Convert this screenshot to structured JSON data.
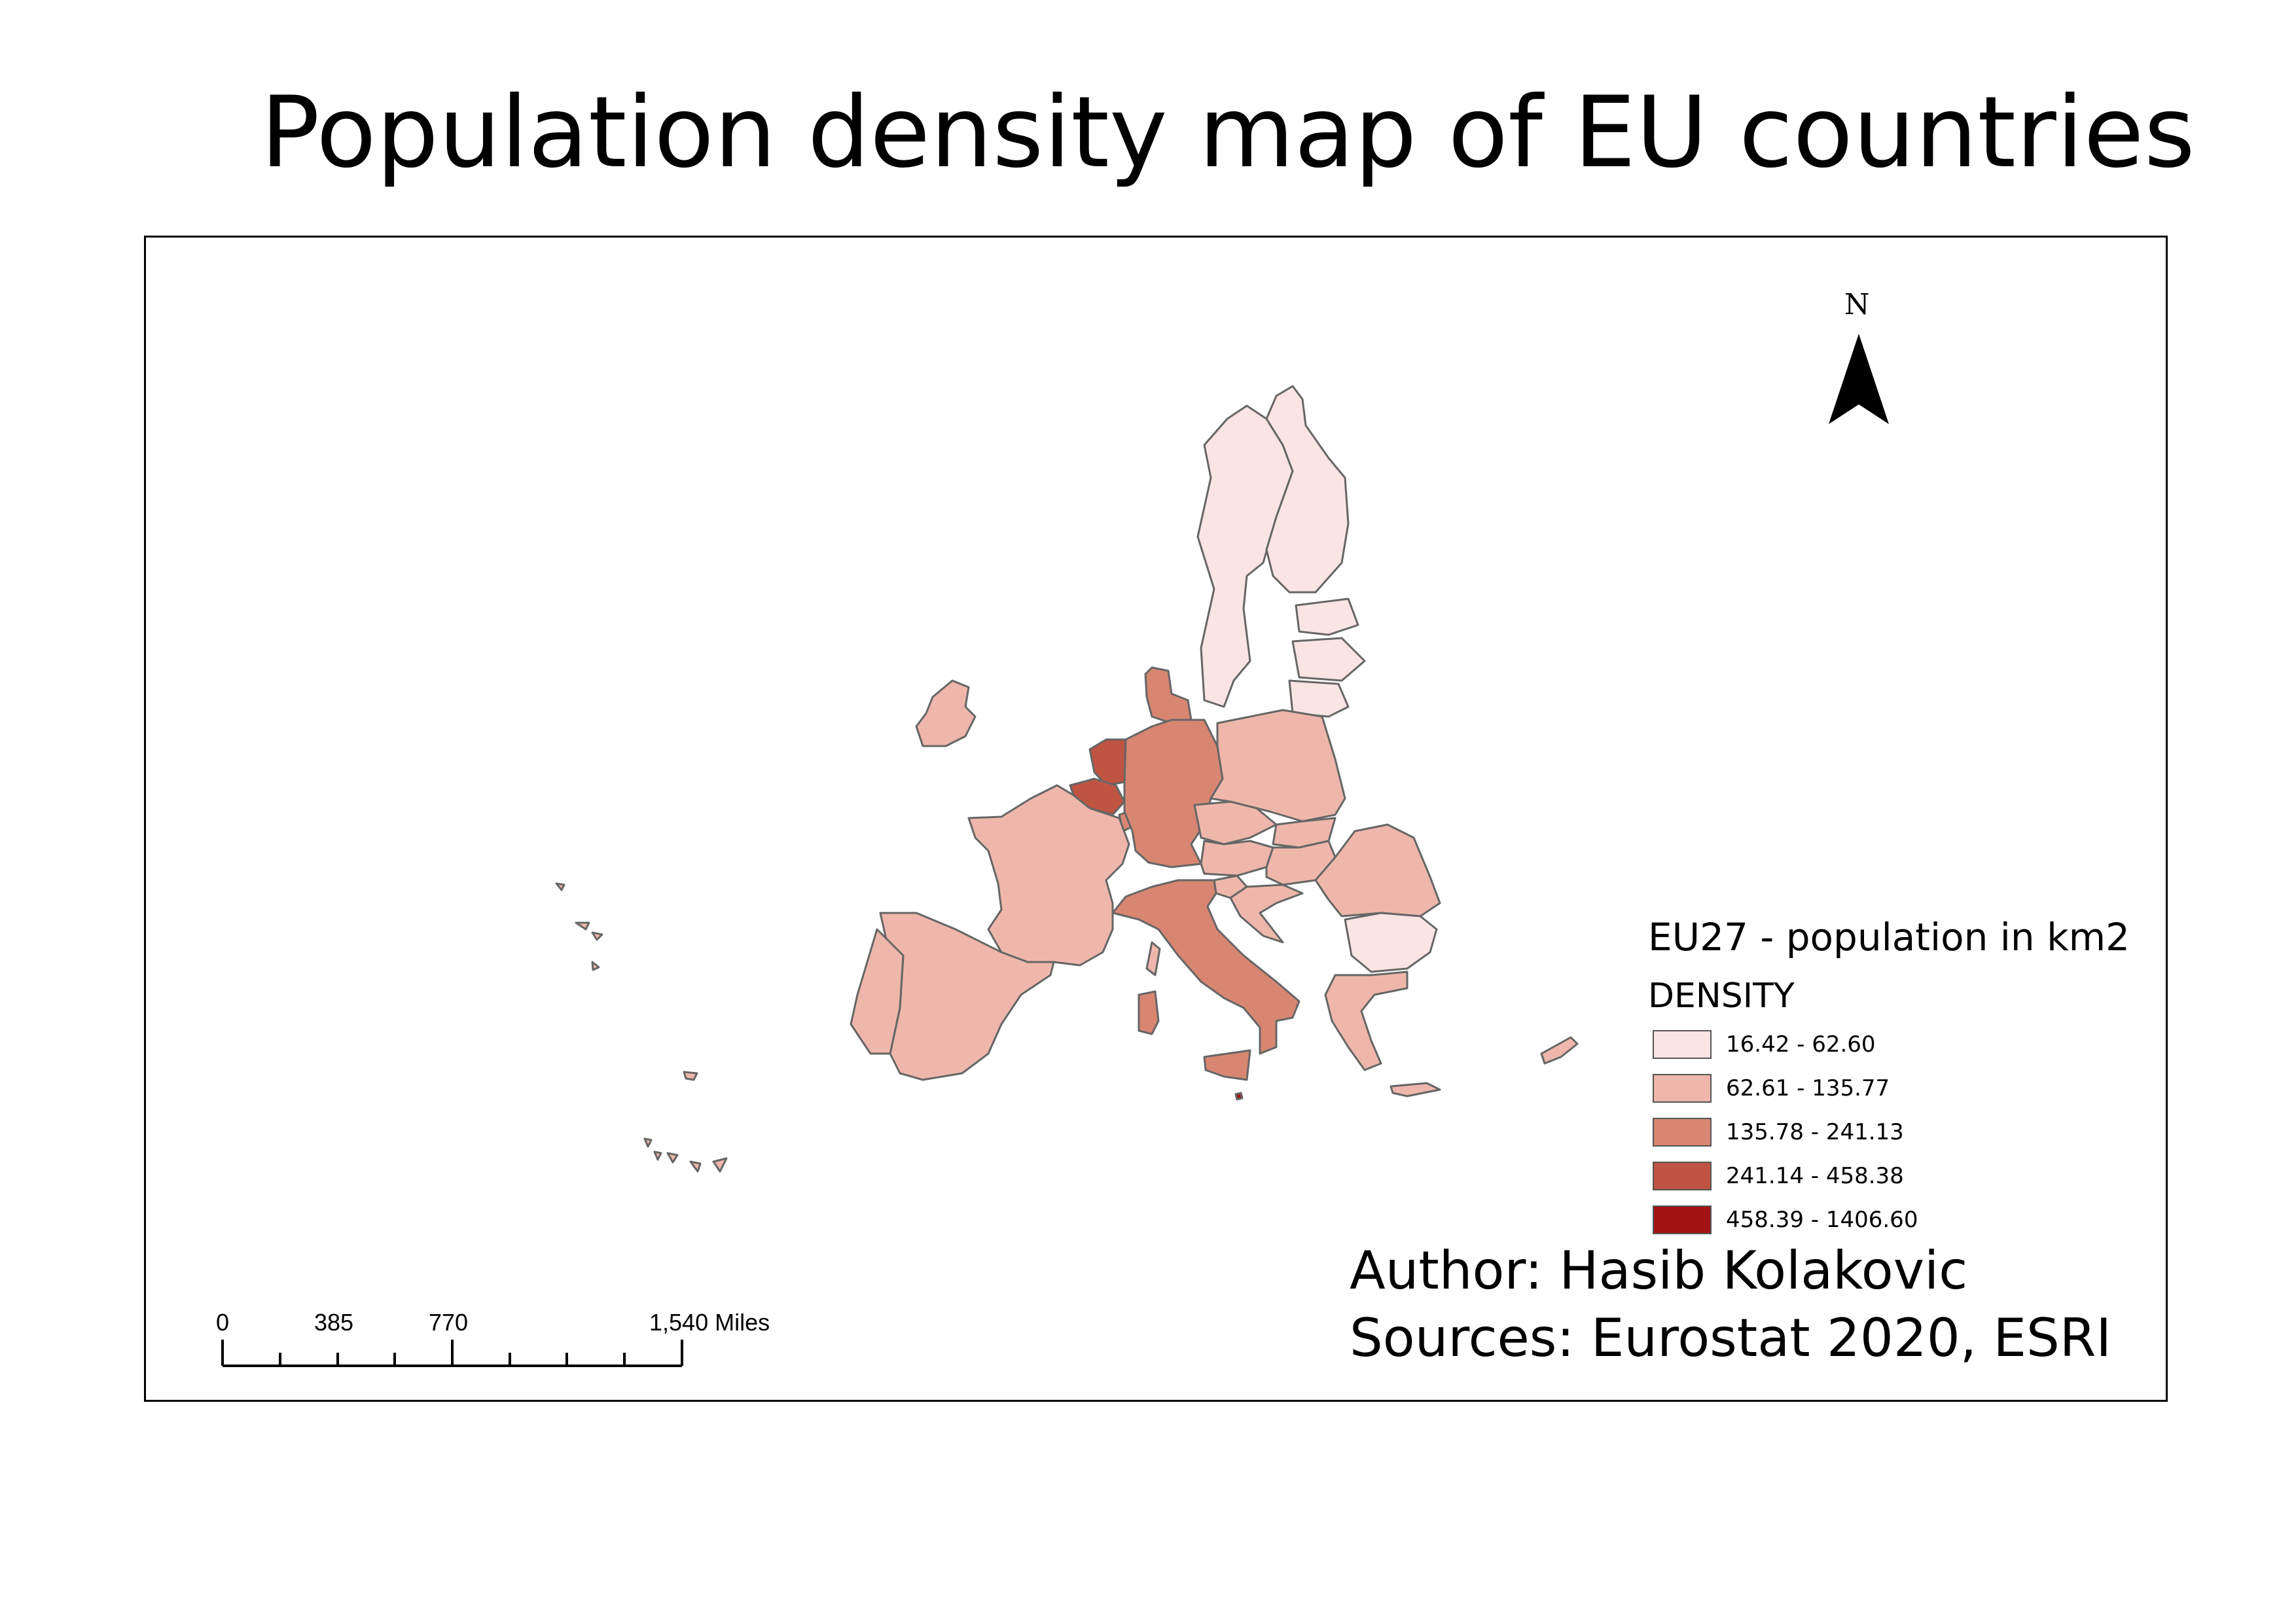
{
  "title": "Population density map of EU countries",
  "north_arrow": {
    "label": "N"
  },
  "legend": {
    "title": "EU27 - population in km2",
    "field": "DENSITY",
    "classes": [
      {
        "label": "16.42 - 62.60",
        "color": "#fbe4e4"
      },
      {
        "label": "62.61 - 135.77",
        "color": "#efb7ab"
      },
      {
        "label": "135.78 - 241.13",
        "color": "#d88672"
      },
      {
        "label": "241.14 - 458.38",
        "color": "#c05442"
      },
      {
        "label": "458.39 - 1406.60",
        "color": "#a11212"
      }
    ]
  },
  "credits": {
    "author": "Author: Hasib Kolakovic",
    "sources": "Sources: Eurostat 2020, ESRI"
  },
  "scale_bar": {
    "labels": [
      "0",
      "385",
      "770",
      "1,540 Miles"
    ]
  },
  "map": {
    "countries": [
      {
        "name": "Finland",
        "class": 0
      },
      {
        "name": "Sweden",
        "class": 0
      },
      {
        "name": "Estonia",
        "class": 0
      },
      {
        "name": "Latvia",
        "class": 0
      },
      {
        "name": "Lithuania",
        "class": 0
      },
      {
        "name": "Bulgaria",
        "class": 0
      },
      {
        "name": "Ireland",
        "class": 1
      },
      {
        "name": "France",
        "class": 1
      },
      {
        "name": "Spain",
        "class": 1
      },
      {
        "name": "Portugal",
        "class": 1
      },
      {
        "name": "Poland",
        "class": 1
      },
      {
        "name": "Czechia",
        "class": 1
      },
      {
        "name": "Slovakia",
        "class": 1
      },
      {
        "name": "Austria",
        "class": 1
      },
      {
        "name": "Hungary",
        "class": 1
      },
      {
        "name": "Slovenia",
        "class": 1
      },
      {
        "name": "Croatia",
        "class": 1
      },
      {
        "name": "Romania",
        "class": 1
      },
      {
        "name": "Greece",
        "class": 1
      },
      {
        "name": "Cyprus",
        "class": 1
      },
      {
        "name": "Denmark",
        "class": 2
      },
      {
        "name": "Germany",
        "class": 2
      },
      {
        "name": "Italy",
        "class": 2
      },
      {
        "name": "Luxembourg",
        "class": 2
      },
      {
        "name": "Netherlands",
        "class": 3
      },
      {
        "name": "Belgium",
        "class": 3
      },
      {
        "name": "Malta",
        "class": 4
      }
    ]
  }
}
